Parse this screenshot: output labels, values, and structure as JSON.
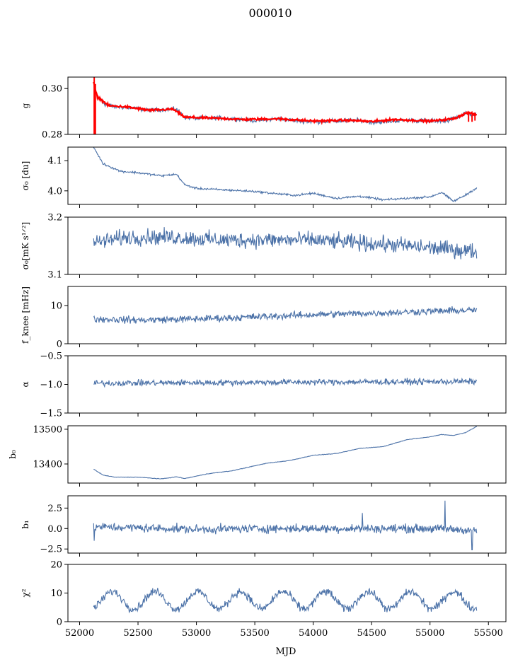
{
  "title": "000010",
  "colors": {
    "series": "#4c72a8",
    "overlay": "#ff0000",
    "axes": "#000000"
  },
  "chart_data": [
    {
      "type": "line",
      "ylabel": "g",
      "ylim": [
        0.28,
        0.305
      ],
      "yticks": [
        0.28,
        0.3
      ],
      "yticklabels": [
        "0.28",
        "0.30"
      ],
      "xlim": [
        51900,
        55650
      ],
      "series": [
        {
          "key": "main",
          "color": "#4c72a8",
          "knots": [
            [
              52120,
              0.3005
            ],
            [
              52160,
              0.296
            ],
            [
              52220,
              0.293
            ],
            [
              52300,
              0.292
            ],
            [
              52450,
              0.2915
            ],
            [
              52600,
              0.2905
            ],
            [
              52750,
              0.291
            ],
            [
              52830,
              0.291
            ],
            [
              52900,
              0.2875
            ],
            [
              53000,
              0.287
            ],
            [
              53200,
              0.2872
            ],
            [
              53400,
              0.2865
            ],
            [
              53500,
              0.286
            ],
            [
              53700,
              0.2868
            ],
            [
              53850,
              0.286
            ],
            [
              54000,
              0.2855
            ],
            [
              54200,
              0.2858
            ],
            [
              54400,
              0.2862
            ],
            [
              54500,
              0.2852
            ],
            [
              54600,
              0.2855
            ],
            [
              54800,
              0.2862
            ],
            [
              55000,
              0.2858
            ],
            [
              55150,
              0.286
            ],
            [
              55300,
              0.2892
            ],
            [
              55400,
              0.2885
            ]
          ],
          "noise": 0.0008
        },
        {
          "key": "fit",
          "color": "#ff0000",
          "knots": [
            [
              52120,
              0.3025
            ],
            [
              52150,
              0.2965
            ],
            [
              52250,
              0.2925
            ],
            [
              52400,
              0.292
            ],
            [
              52600,
              0.2905
            ],
            [
              52800,
              0.291
            ],
            [
              52900,
              0.2875
            ],
            [
              53100,
              0.2872
            ],
            [
              53400,
              0.2865
            ],
            [
              53700,
              0.2868
            ],
            [
              54000,
              0.2858
            ],
            [
              54300,
              0.2862
            ],
            [
              54500,
              0.2856
            ],
            [
              54700,
              0.2865
            ],
            [
              55000,
              0.2858
            ],
            [
              55200,
              0.2868
            ],
            [
              55320,
              0.2895
            ],
            [
              55400,
              0.2885
            ]
          ],
          "noise": 0.0004
        }
      ]
    },
    {
      "type": "line",
      "ylabel": "σ₀ [du]",
      "ylim": [
        3.955,
        4.145
      ],
      "yticks": [
        4.0,
        4.1
      ],
      "yticklabels": [
        "4.0",
        "4.1"
      ],
      "xlim": [
        51900,
        55650
      ],
      "series": [
        {
          "key": "main",
          "color": "#4c72a8",
          "knots": [
            [
              52120,
              4.145
            ],
            [
              52200,
              4.09
            ],
            [
              52350,
              4.065
            ],
            [
              52500,
              4.06
            ],
            [
              52600,
              4.055
            ],
            [
              52700,
              4.05
            ],
            [
              52830,
              4.055
            ],
            [
              52900,
              4.02
            ],
            [
              53000,
              4.008
            ],
            [
              53300,
              4.002
            ],
            [
              53500,
              3.998
            ],
            [
              53700,
              3.99
            ],
            [
              53850,
              3.985
            ],
            [
              54000,
              3.992
            ],
            [
              54200,
              3.975
            ],
            [
              54400,
              3.982
            ],
            [
              54600,
              3.97
            ],
            [
              54800,
              3.975
            ],
            [
              55000,
              3.98
            ],
            [
              55100,
              3.995
            ],
            [
              55200,
              3.965
            ],
            [
              55300,
              3.985
            ],
            [
              55400,
              4.01
            ]
          ],
          "noise": 0.003
        }
      ]
    },
    {
      "type": "line",
      "ylabel": "σ₀[mK s¹ᐟ²]",
      "ylim": [
        3.1,
        3.2
      ],
      "yticks": [
        3.1,
        3.2
      ],
      "yticklabels": [
        "3.1",
        "3.2"
      ],
      "xlim": [
        51900,
        55650
      ],
      "series": [
        {
          "key": "main",
          "color": "#4c72a8",
          "knots": [
            [
              52120,
              3.155
            ],
            [
              52400,
              3.165
            ],
            [
              52800,
              3.165
            ],
            [
              53200,
              3.16
            ],
            [
              53600,
              3.16
            ],
            [
              54000,
              3.16
            ],
            [
              54400,
              3.155
            ],
            [
              54800,
              3.15
            ],
            [
              55100,
              3.145
            ],
            [
              55400,
              3.14
            ]
          ],
          "noise": 0.012
        }
      ]
    },
    {
      "type": "line",
      "ylabel": "f_knee [mHz]",
      "ylim": [
        0,
        15
      ],
      "yticks": [
        0,
        10
      ],
      "yticklabels": [
        "0",
        "10"
      ],
      "xlim": [
        51900,
        55650
      ],
      "series": [
        {
          "key": "main",
          "color": "#4c72a8",
          "knots": [
            [
              52120,
              6.5
            ],
            [
              52500,
              6.2
            ],
            [
              53000,
              6.5
            ],
            [
              53500,
              7.0
            ],
            [
              54000,
              7.6
            ],
            [
              54500,
              8.0
            ],
            [
              55000,
              8.5
            ],
            [
              55400,
              8.8
            ]
          ],
          "noise": 0.8
        }
      ]
    },
    {
      "type": "line",
      "ylabel": "α",
      "ylim": [
        -1.5,
        -0.5
      ],
      "yticks": [
        -1.5,
        -1.0,
        -0.5
      ],
      "yticklabels": [
        "−1.5",
        "−1.0",
        "−0.5"
      ],
      "xlim": [
        51900,
        55650
      ],
      "series": [
        {
          "key": "main",
          "color": "#4c72a8",
          "knots": [
            [
              52120,
              -0.98
            ],
            [
              53000,
              -0.97
            ],
            [
              54000,
              -0.96
            ],
            [
              55400,
              -0.95
            ]
          ],
          "noise": 0.045
        }
      ]
    },
    {
      "type": "line",
      "ylabel": "b₀",
      "ylim": [
        13345,
        13510
      ],
      "yticks": [
        13400,
        13500
      ],
      "yticklabels": [
        "13400",
        "13500"
      ],
      "xlim": [
        51900,
        55650
      ],
      "series": [
        {
          "key": "main",
          "color": "#4c72a8",
          "knots": [
            [
              52120,
              13385
            ],
            [
              52200,
              13368
            ],
            [
              52300,
              13362
            ],
            [
              52500,
              13362
            ],
            [
              52700,
              13357
            ],
            [
              52830,
              13363
            ],
            [
              52900,
              13358
            ],
            [
              53100,
              13372
            ],
            [
              53300,
              13380
            ],
            [
              53600,
              13402
            ],
            [
              53800,
              13410
            ],
            [
              54000,
              13425
            ],
            [
              54200,
              13430
            ],
            [
              54400,
              13445
            ],
            [
              54600,
              13450
            ],
            [
              54800,
              13470
            ],
            [
              55000,
              13478
            ],
            [
              55100,
              13485
            ],
            [
              55200,
              13482
            ],
            [
              55300,
              13490
            ],
            [
              55400,
              13508
            ]
          ],
          "noise": 0.6
        }
      ]
    },
    {
      "type": "line",
      "ylabel": "b₁",
      "ylim": [
        -3.0,
        4.0
      ],
      "yticks": [
        -2.5,
        0.0,
        2.5
      ],
      "yticklabels": [
        "−2.5",
        "0.0",
        "2.5"
      ],
      "xlim": [
        51900,
        55650
      ],
      "series": [
        {
          "key": "main",
          "color": "#4c72a8",
          "knots": [
            [
              52120,
              0.2
            ],
            [
              52500,
              0.1
            ],
            [
              53000,
              -0.1
            ],
            [
              53500,
              0.0
            ],
            [
              54000,
              0.0
            ],
            [
              54500,
              0.0
            ],
            [
              55000,
              0.0
            ],
            [
              55400,
              -0.2
            ]
          ],
          "noise": 0.45,
          "spikes": [
            [
              52125,
              -1.5
            ],
            [
              54420,
              1.9
            ],
            [
              55130,
              3.4
            ],
            [
              55360,
              -2.6
            ]
          ]
        }
      ]
    },
    {
      "type": "line",
      "ylabel": "χ²",
      "xlabel": "MJD",
      "ylim": [
        0,
        20
      ],
      "yticks": [
        0,
        10,
        20
      ],
      "yticklabels": [
        "0",
        "10",
        "20"
      ],
      "xticks": [
        52000,
        52500,
        53000,
        53500,
        54000,
        54500,
        55000,
        55500
      ],
      "xticklabels": [
        "52000",
        "52500",
        "53000",
        "53500",
        "54000",
        "54500",
        "55000",
        "55500"
      ],
      "xlim": [
        51900,
        55650
      ],
      "series": [
        {
          "key": "main",
          "color": "#4c72a8",
          "seasonal": {
            "mean": 7.5,
            "amp": 3,
            "period": 365,
            "phase": 52280
          },
          "noise": 1.2
        }
      ]
    }
  ]
}
